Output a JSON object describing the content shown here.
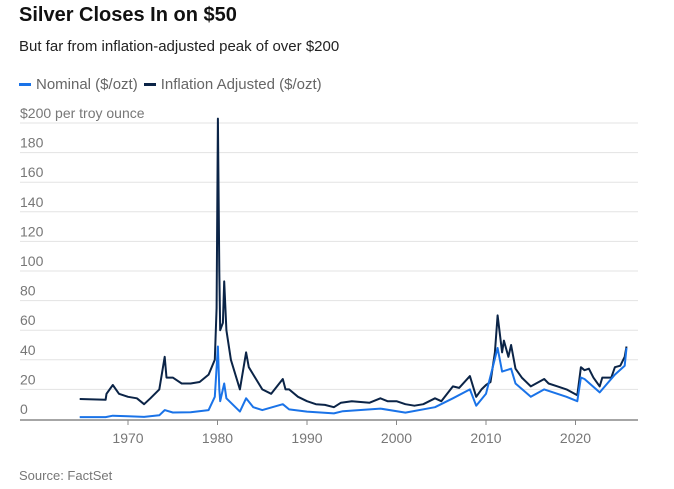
{
  "title": "Silver Closes In on $50",
  "subtitle": "But far from inflation-adjusted peak of over $200",
  "source": "Source: FactSet",
  "chart_data": {
    "type": "line",
    "title": "Silver Closes In on $50",
    "ylabel": "$200 per troy ounce",
    "ylim": [
      0,
      200
    ],
    "xlim": [
      1958.4,
      2027
    ],
    "grid": true,
    "legend_placement": "top-left",
    "y_ticks": [
      "0",
      "20",
      "40",
      "60",
      "80",
      "100",
      "120",
      "140",
      "160",
      "180",
      "$200 per troy ounce"
    ],
    "x_ticks": [
      "1970",
      "1980",
      "1990",
      "2000",
      "2010",
      "2020"
    ],
    "series": [
      {
        "name": "Nominal ($/ozt)",
        "color": "#1a73e8",
        "points": [
          [
            1964.6,
            1.3
          ],
          [
            1967.5,
            1.3
          ],
          [
            1968.3,
            2.2
          ],
          [
            1970,
            1.8
          ],
          [
            1971.8,
            1.4
          ],
          [
            1973.5,
            2.5
          ],
          [
            1974.1,
            6
          ],
          [
            1975,
            4.4
          ],
          [
            1977,
            4.6
          ],
          [
            1979,
            6
          ],
          [
            1979.7,
            15
          ],
          [
            1980.05,
            49
          ],
          [
            1980.2,
            20
          ],
          [
            1980.3,
            12
          ],
          [
            1980.75,
            24
          ],
          [
            1981,
            14
          ],
          [
            1982.5,
            5
          ],
          [
            1983.2,
            14
          ],
          [
            1984,
            8
          ],
          [
            1985,
            6
          ],
          [
            1987.3,
            10
          ],
          [
            1988,
            6.5
          ],
          [
            1990,
            5
          ],
          [
            1993,
            3.8
          ],
          [
            1994,
            5.3
          ],
          [
            1998.2,
            7
          ],
          [
            2001,
            4.3
          ],
          [
            2004.3,
            8
          ],
          [
            2006.3,
            14
          ],
          [
            2008.2,
            20
          ],
          [
            2008.9,
            9
          ],
          [
            2010,
            17
          ],
          [
            2011.3,
            48
          ],
          [
            2011.8,
            32
          ],
          [
            2012.8,
            34
          ],
          [
            2013.3,
            24
          ],
          [
            2015,
            15
          ],
          [
            2016.5,
            20
          ],
          [
            2019,
            15
          ],
          [
            2020.2,
            12
          ],
          [
            2020.6,
            28
          ],
          [
            2021,
            27
          ],
          [
            2022.7,
            18
          ],
          [
            2024.4,
            30
          ],
          [
            2025.5,
            36
          ],
          [
            2025.7,
            48
          ]
        ]
      },
      {
        "name": "Inflation Adjusted ($/ozt)",
        "color": "#0b2447",
        "points": [
          [
            1964.6,
            13.5
          ],
          [
            1967.5,
            13
          ],
          [
            1967.6,
            17
          ],
          [
            1968.3,
            23
          ],
          [
            1969,
            17
          ],
          [
            1970,
            15
          ],
          [
            1971,
            14
          ],
          [
            1971.8,
            10
          ],
          [
            1972.5,
            14
          ],
          [
            1973.5,
            20
          ],
          [
            1974.1,
            42
          ],
          [
            1974.3,
            28
          ],
          [
            1975,
            28
          ],
          [
            1976,
            24
          ],
          [
            1977,
            24
          ],
          [
            1978,
            25
          ],
          [
            1979,
            30
          ],
          [
            1979.7,
            40
          ],
          [
            1979.9,
            75
          ],
          [
            1980.05,
            203
          ],
          [
            1980.2,
            100
          ],
          [
            1980.3,
            60
          ],
          [
            1980.6,
            65
          ],
          [
            1980.75,
            93
          ],
          [
            1981,
            60
          ],
          [
            1981.5,
            40
          ],
          [
            1982.5,
            20
          ],
          [
            1983.2,
            45
          ],
          [
            1983.5,
            35
          ],
          [
            1984,
            30
          ],
          [
            1985,
            20
          ],
          [
            1986,
            17
          ],
          [
            1987.3,
            27
          ],
          [
            1987.6,
            20
          ],
          [
            1988,
            20
          ],
          [
            1989,
            15
          ],
          [
            1990,
            12
          ],
          [
            1991,
            10
          ],
          [
            1992,
            9.5
          ],
          [
            1993,
            8
          ],
          [
            1993.8,
            11
          ],
          [
            1995,
            12
          ],
          [
            1997,
            11
          ],
          [
            1998.2,
            14
          ],
          [
            1999,
            12
          ],
          [
            2000,
            12
          ],
          [
            2001,
            10
          ],
          [
            2002,
            9
          ],
          [
            2003,
            10
          ],
          [
            2004.3,
            14
          ],
          [
            2005,
            12
          ],
          [
            2006.3,
            22
          ],
          [
            2007,
            21
          ],
          [
            2008.2,
            29
          ],
          [
            2008.9,
            15
          ],
          [
            2009.5,
            20
          ],
          [
            2010,
            23
          ],
          [
            2010.5,
            25
          ],
          [
            2011,
            45
          ],
          [
            2011.3,
            70
          ],
          [
            2011.8,
            45
          ],
          [
            2012,
            53
          ],
          [
            2012.5,
            42
          ],
          [
            2012.8,
            50
          ],
          [
            2013.3,
            34
          ],
          [
            2014,
            28
          ],
          [
            2015,
            22
          ],
          [
            2016.5,
            27
          ],
          [
            2017,
            24
          ],
          [
            2018,
            22
          ],
          [
            2019,
            20
          ],
          [
            2020.2,
            16
          ],
          [
            2020.6,
            35
          ],
          [
            2021,
            33
          ],
          [
            2021.5,
            34
          ],
          [
            2022,
            28
          ],
          [
            2022.7,
            22
          ],
          [
            2023,
            28
          ],
          [
            2024,
            28
          ],
          [
            2024.4,
            35
          ],
          [
            2025,
            36
          ],
          [
            2025.5,
            42
          ],
          [
            2025.7,
            49
          ]
        ]
      }
    ]
  }
}
